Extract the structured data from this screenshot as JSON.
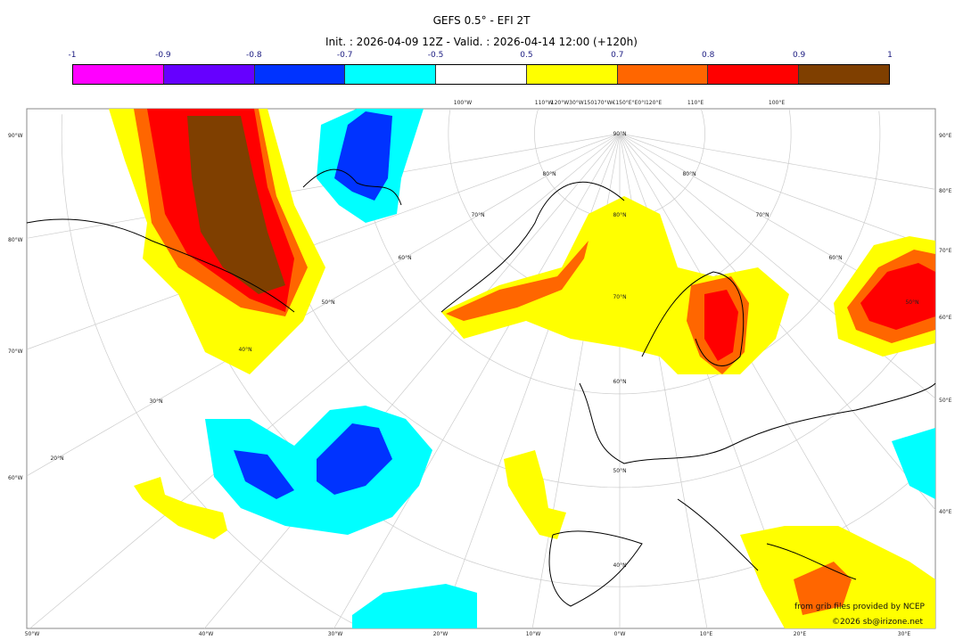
{
  "title": "GEFS 0.5° - EFI 2T",
  "subtitle": "Init. : 2026-04-09 12Z - Valid. : 2026-04-14 12:00 (+120h)",
  "colorbar": {
    "ticks": [
      "-1",
      "-0.9",
      "-0.8",
      "-0.7",
      "-0.5",
      "0.5",
      "0.7",
      "0.8",
      "0.9",
      "1"
    ],
    "colors": [
      "#ff00ff",
      "#6600ff",
      "#0033ff",
      "#00ffff",
      "#ffffff",
      "#ffff00",
      "#ff6600",
      "#ff0000",
      "#7f3f00"
    ]
  },
  "map": {
    "left_labels": [
      "90°W",
      "80°W",
      "70°W",
      "60°W"
    ],
    "right_labels": [
      "90°E",
      "80°E",
      "70°E",
      "60°E",
      "50°E",
      "40°E"
    ],
    "bottom_labels": [
      "50°W",
      "40°W",
      "30°W",
      "20°W",
      "10°W",
      "0°W",
      "10°E",
      "20°E",
      "30°E"
    ],
    "top_labels": [
      "100°W",
      "110°W",
      "120°W30°W150170°W€150°E°E0°I120°E",
      "110°E",
      "100°E"
    ],
    "lat_labels": [
      "90°N",
      "80°N",
      "70°N",
      "60°N",
      "50°N",
      "40°N",
      "50°N",
      "40°N",
      "30°N",
      "20°N",
      "60°N",
      "70°N",
      "80°N",
      "80°N",
      "70°N",
      "60°N",
      "50°N"
    ]
  },
  "credits": {
    "source": "from grib files provided by NCEP",
    "copyright": "©2026 sb@irizone.net"
  }
}
